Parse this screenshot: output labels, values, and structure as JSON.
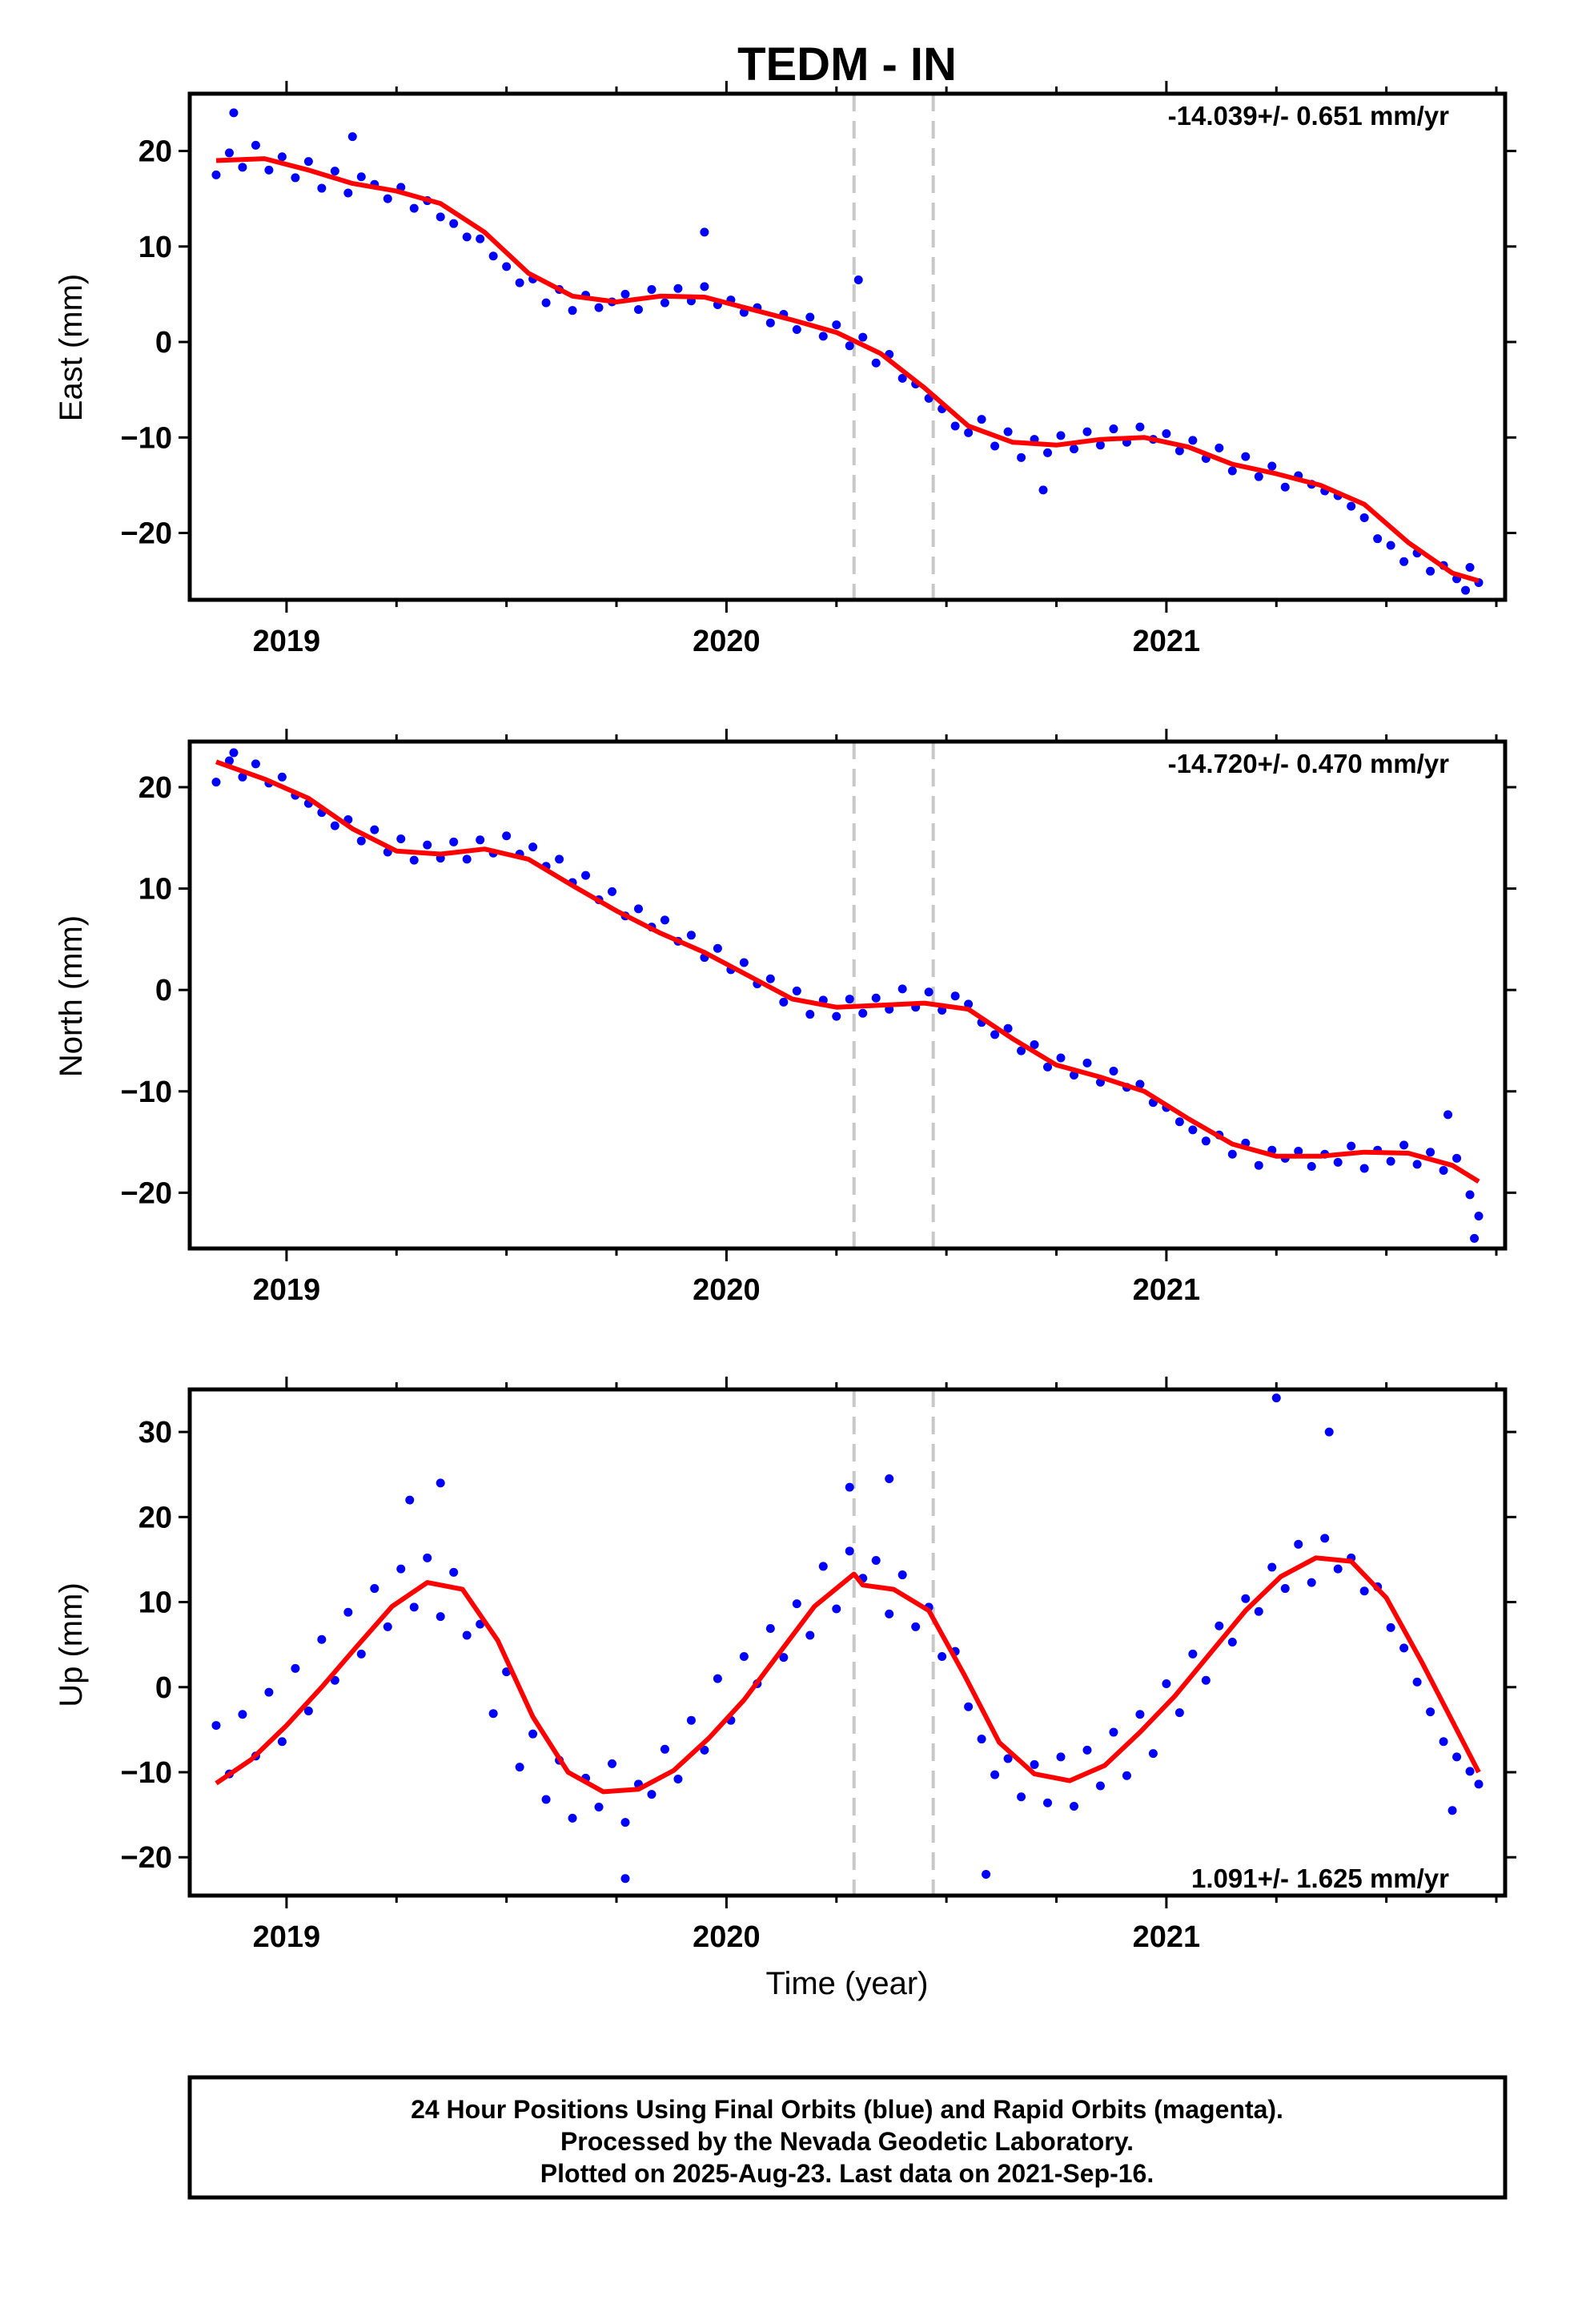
{
  "title": "TEDM - IN",
  "xlabel": "Time (year)",
  "footer": {
    "line1": "24 Hour Positions Using Final Orbits (blue) and Rapid Orbits (magenta).",
    "line2": "Processed by the Nevada Geodetic Laboratory.",
    "line3": "Plotted on 2025-Aug-23. Last data on 2021-Sep-16."
  },
  "colors": {
    "points": "#0000ff",
    "fit": "#ff0000",
    "event_lines": "#c8c8c8",
    "frame": "#000000"
  },
  "chart_data": [
    {
      "type": "scatter",
      "component": "East",
      "ylabel": "East (mm)",
      "rate_text": "-14.039+/- 0.651 mm/yr",
      "xlim": [
        2018.78,
        2021.77
      ],
      "ylim": [
        -27,
        26
      ],
      "xticks": [
        2019,
        2020,
        2021
      ],
      "xtick_labels": [
        "2019",
        "2020",
        "2021"
      ],
      "yticks": [
        -20,
        -10,
        0,
        10,
        20
      ],
      "ytick_labels": [
        "−20",
        "−10",
        "0",
        "10",
        "20"
      ],
      "event_lines": [
        2020.29,
        2020.47
      ],
      "fit_curve": {
        "x": [
          2018.84,
          2018.95,
          2019.05,
          2019.15,
          2019.25,
          2019.35,
          2019.45,
          2019.55,
          2019.65,
          2019.75,
          2019.85,
          2019.95,
          2020.05,
          2020.15,
          2020.25,
          2020.35,
          2020.45,
          2020.55,
          2020.65,
          2020.75,
          2020.85,
          2020.95,
          2021.05,
          2021.15,
          2021.25,
          2021.35,
          2021.45,
          2021.55,
          2021.65,
          2021.71
        ],
        "y": [
          19.0,
          19.2,
          18.0,
          16.6,
          15.8,
          14.5,
          11.5,
          7.2,
          4.8,
          4.2,
          4.8,
          4.7,
          3.5,
          2.3,
          1.0,
          -1.2,
          -4.8,
          -8.8,
          -10.5,
          -10.8,
          -10.2,
          -10.0,
          -11.0,
          -12.8,
          -13.8,
          -15.0,
          -17.0,
          -21.0,
          -24.2,
          -25.0
        ]
      },
      "points": {
        "x": [
          2018.84,
          2018.87,
          2018.9,
          2018.93,
          2018.96,
          2018.99,
          2019.02,
          2019.05,
          2019.08,
          2019.11,
          2019.14,
          2019.17,
          2019.2,
          2019.23,
          2019.26,
          2019.29,
          2019.32,
          2019.35,
          2019.38,
          2019.41,
          2019.44,
          2019.47,
          2019.5,
          2019.53,
          2019.56,
          2019.59,
          2019.62,
          2019.65,
          2019.68,
          2019.71,
          2019.74,
          2019.77,
          2019.8,
          2019.83,
          2019.86,
          2019.89,
          2019.92,
          2019.95,
          2019.98,
          2020.01,
          2020.04,
          2020.07,
          2020.1,
          2020.13,
          2020.16,
          2020.19,
          2020.22,
          2020.25,
          2020.28,
          2020.31,
          2020.34,
          2020.37,
          2020.4,
          2020.43,
          2020.46,
          2020.49,
          2020.52,
          2020.55,
          2020.58,
          2020.61,
          2020.64,
          2020.67,
          2020.7,
          2020.73,
          2020.76,
          2020.79,
          2020.82,
          2020.85,
          2020.88,
          2020.91,
          2020.94,
          2020.97,
          2021.0,
          2021.03,
          2021.06,
          2021.09,
          2021.12,
          2021.15,
          2021.18,
          2021.21,
          2021.24,
          2021.27,
          2021.3,
          2021.33,
          2021.36,
          2021.39,
          2021.42,
          2021.45,
          2021.48,
          2021.51,
          2021.54,
          2021.57,
          2021.6,
          2021.63,
          2021.66,
          2021.69,
          2021.71,
          2018.88,
          2019.15,
          2019.95,
          2020.3,
          2020.72,
          2021.68
        ],
        "y": [
          17.5,
          19.8,
          18.3,
          20.6,
          18.0,
          19.4,
          17.2,
          18.9,
          16.1,
          17.9,
          15.6,
          17.3,
          16.5,
          15.0,
          16.2,
          14.0,
          14.8,
          13.1,
          12.4,
          11.0,
          10.8,
          9.0,
          7.9,
          6.2,
          6.6,
          4.1,
          5.5,
          3.3,
          4.9,
          3.6,
          4.2,
          5.0,
          3.4,
          5.5,
          4.1,
          5.6,
          4.3,
          5.8,
          3.9,
          4.4,
          3.1,
          3.6,
          2.0,
          2.9,
          1.3,
          2.6,
          0.6,
          1.8,
          -0.4,
          0.5,
          -2.2,
          -1.3,
          -3.8,
          -4.4,
          -5.9,
          -7.0,
          -8.8,
          -9.5,
          -8.1,
          -10.9,
          -9.4,
          -12.1,
          -10.2,
          -11.6,
          -9.8,
          -11.2,
          -9.4,
          -10.8,
          -9.1,
          -10.5,
          -8.9,
          -10.2,
          -9.6,
          -11.4,
          -10.3,
          -12.2,
          -11.1,
          -13.5,
          -12.0,
          -14.1,
          -13.0,
          -15.2,
          -14.0,
          -14.9,
          -15.6,
          -16.1,
          -17.2,
          -18.4,
          -20.6,
          -21.3,
          -23.0,
          -22.1,
          -24.0,
          -23.4,
          -24.8,
          -23.6,
          -25.2,
          24.0,
          21.5,
          11.5,
          6.5,
          -15.5,
          -26.0
        ]
      }
    },
    {
      "type": "scatter",
      "component": "North",
      "ylabel": "North (mm)",
      "rate_text": "-14.720+/- 0.470 mm/yr",
      "xlim": [
        2018.78,
        2021.77
      ],
      "ylim": [
        -25.5,
        24.5
      ],
      "xticks": [
        2019,
        2020,
        2021
      ],
      "xtick_labels": [
        "2019",
        "2020",
        "2021"
      ],
      "yticks": [
        -20,
        -10,
        0,
        10,
        20
      ],
      "ytick_labels": [
        "−20",
        "−10",
        "0",
        "10",
        "20"
      ],
      "event_lines": [
        2020.29,
        2020.47
      ],
      "fit_curve": {
        "x": [
          2018.84,
          2018.95,
          2019.05,
          2019.15,
          2019.25,
          2019.35,
          2019.45,
          2019.55,
          2019.65,
          2019.75,
          2019.85,
          2019.95,
          2020.05,
          2020.15,
          2020.25,
          2020.35,
          2020.45,
          2020.55,
          2020.65,
          2020.75,
          2020.85,
          2020.95,
          2021.05,
          2021.15,
          2021.25,
          2021.35,
          2021.45,
          2021.55,
          2021.65,
          2021.71
        ],
        "y": [
          22.5,
          20.8,
          18.9,
          15.9,
          13.7,
          13.4,
          13.9,
          12.9,
          10.3,
          7.8,
          5.6,
          3.7,
          1.4,
          -0.9,
          -1.7,
          -1.5,
          -1.3,
          -1.9,
          -4.8,
          -7.4,
          -8.6,
          -10.0,
          -12.7,
          -15.2,
          -16.4,
          -16.4,
          -16.0,
          -16.1,
          -17.3,
          -18.9
        ]
      },
      "points": {
        "x": [
          2018.84,
          2018.87,
          2018.9,
          2018.93,
          2018.96,
          2018.99,
          2019.02,
          2019.05,
          2019.08,
          2019.11,
          2019.14,
          2019.17,
          2019.2,
          2019.23,
          2019.26,
          2019.29,
          2019.32,
          2019.35,
          2019.38,
          2019.41,
          2019.44,
          2019.47,
          2019.5,
          2019.53,
          2019.56,
          2019.59,
          2019.62,
          2019.65,
          2019.68,
          2019.71,
          2019.74,
          2019.77,
          2019.8,
          2019.83,
          2019.86,
          2019.89,
          2019.92,
          2019.95,
          2019.98,
          2020.01,
          2020.04,
          2020.07,
          2020.1,
          2020.13,
          2020.16,
          2020.19,
          2020.22,
          2020.25,
          2020.28,
          2020.31,
          2020.34,
          2020.37,
          2020.4,
          2020.43,
          2020.46,
          2020.49,
          2020.52,
          2020.55,
          2020.58,
          2020.61,
          2020.64,
          2020.67,
          2020.7,
          2020.73,
          2020.76,
          2020.79,
          2020.82,
          2020.85,
          2020.88,
          2020.91,
          2020.94,
          2020.97,
          2021.0,
          2021.03,
          2021.06,
          2021.09,
          2021.12,
          2021.15,
          2021.18,
          2021.21,
          2021.24,
          2021.27,
          2021.3,
          2021.33,
          2021.36,
          2021.39,
          2021.42,
          2021.45,
          2021.48,
          2021.51,
          2021.54,
          2021.57,
          2021.6,
          2021.63,
          2021.66,
          2021.69,
          2021.71,
          2018.88,
          2021.64,
          2021.7
        ],
        "y": [
          20.5,
          22.6,
          21.0,
          22.3,
          20.4,
          21.0,
          19.2,
          18.4,
          17.5,
          16.2,
          16.8,
          14.7,
          15.8,
          13.6,
          14.9,
          12.8,
          14.3,
          13.0,
          14.6,
          12.9,
          14.8,
          13.5,
          15.2,
          13.4,
          14.1,
          12.2,
          12.9,
          10.6,
          11.3,
          8.9,
          9.7,
          7.3,
          8.0,
          6.2,
          6.9,
          4.8,
          5.4,
          3.2,
          4.1,
          2.0,
          2.7,
          0.6,
          1.1,
          -1.2,
          -0.1,
          -2.4,
          -1.0,
          -2.6,
          -0.9,
          -2.3,
          -0.8,
          -1.9,
          0.1,
          -1.7,
          -0.2,
          -2.0,
          -0.6,
          -1.4,
          -3.2,
          -4.4,
          -3.8,
          -6.0,
          -5.4,
          -7.6,
          -6.7,
          -8.4,
          -7.2,
          -9.1,
          -8.0,
          -9.6,
          -9.3,
          -11.1,
          -11.6,
          -13.0,
          -13.8,
          -14.9,
          -14.3,
          -16.2,
          -15.1,
          -17.3,
          -15.8,
          -16.6,
          -15.9,
          -17.4,
          -16.2,
          -17.0,
          -15.4,
          -17.6,
          -15.8,
          -16.9,
          -15.3,
          -17.2,
          -16.0,
          -17.8,
          -16.6,
          -20.2,
          -22.3,
          23.4,
          -12.3,
          -24.5
        ]
      }
    },
    {
      "type": "scatter",
      "component": "Up",
      "ylabel": "Up (mm)",
      "rate_text": "1.091+/- 1.625 mm/yr",
      "xlim": [
        2018.78,
        2021.77
      ],
      "ylim": [
        -24.5,
        35
      ],
      "xticks": [
        2019,
        2020,
        2021
      ],
      "xtick_labels": [
        "2019",
        "2020",
        "2021"
      ],
      "yticks": [
        -20,
        -10,
        0,
        10,
        20,
        30
      ],
      "ytick_labels": [
        "−20",
        "−10",
        "0",
        "10",
        "20",
        "30"
      ],
      "event_lines": [
        2020.29,
        2020.47
      ],
      "fit_curve": {
        "x": [
          2018.84,
          2018.92,
          2019.0,
          2019.08,
          2019.16,
          2019.24,
          2019.32,
          2019.4,
          2019.48,
          2019.56,
          2019.64,
          2019.72,
          2019.8,
          2019.88,
          2019.96,
          2020.04,
          2020.12,
          2020.2,
          2020.29,
          2020.31,
          2020.38,
          2020.46,
          2020.54,
          2020.62,
          2020.7,
          2020.78,
          2020.86,
          2020.94,
          2021.02,
          2021.1,
          2021.18,
          2021.26,
          2021.34,
          2021.42,
          2021.5,
          2021.58,
          2021.66,
          2021.71
        ],
        "y": [
          -11.3,
          -8.5,
          -4.5,
          0.0,
          4.8,
          9.5,
          12.3,
          11.5,
          5.5,
          -3.5,
          -10.0,
          -12.3,
          -12.0,
          -9.8,
          -6.0,
          -1.5,
          4.0,
          9.5,
          13.3,
          12.0,
          11.5,
          9.0,
          1.5,
          -6.5,
          -10.2,
          -11.0,
          -9.2,
          -5.3,
          -1.0,
          4.0,
          9.0,
          13.0,
          15.2,
          14.8,
          10.5,
          3.0,
          -5.0,
          -10.0
        ]
      },
      "points": {
        "x": [
          2018.84,
          2018.87,
          2018.9,
          2018.93,
          2018.96,
          2018.99,
          2019.02,
          2019.05,
          2019.08,
          2019.11,
          2019.14,
          2019.17,
          2019.2,
          2019.23,
          2019.26,
          2019.29,
          2019.32,
          2019.35,
          2019.38,
          2019.41,
          2019.44,
          2019.47,
          2019.5,
          2019.53,
          2019.56,
          2019.59,
          2019.62,
          2019.65,
          2019.68,
          2019.71,
          2019.74,
          2019.77,
          2019.8,
          2019.83,
          2019.86,
          2019.89,
          2019.92,
          2019.95,
          2019.98,
          2020.01,
          2020.04,
          2020.07,
          2020.1,
          2020.13,
          2020.16,
          2020.19,
          2020.22,
          2020.25,
          2020.28,
          2020.31,
          2020.34,
          2020.37,
          2020.4,
          2020.43,
          2020.46,
          2020.49,
          2020.52,
          2020.55,
          2020.58,
          2020.61,
          2020.64,
          2020.67,
          2020.7,
          2020.73,
          2020.76,
          2020.79,
          2020.82,
          2020.85,
          2020.88,
          2020.91,
          2020.94,
          2020.97,
          2021.0,
          2021.03,
          2021.06,
          2021.09,
          2021.12,
          2021.15,
          2021.18,
          2021.21,
          2021.24,
          2021.27,
          2021.3,
          2021.33,
          2021.36,
          2021.39,
          2021.42,
          2021.45,
          2021.48,
          2021.51,
          2021.54,
          2021.57,
          2021.6,
          2021.63,
          2021.66,
          2021.69,
          2021.71,
          2019.28,
          2019.35,
          2019.77,
          2020.28,
          2020.37,
          2020.59,
          2021.25,
          2021.37,
          2021.65
        ],
        "y": [
          -4.5,
          -10.2,
          -3.2,
          -8.1,
          -0.6,
          -6.4,
          2.2,
          -2.8,
          5.6,
          0.8,
          8.8,
          3.9,
          11.6,
          7.1,
          13.9,
          9.4,
          15.2,
          8.3,
          13.5,
          6.1,
          7.4,
          -3.1,
          1.8,
          -9.4,
          -5.5,
          -13.2,
          -8.6,
          -15.4,
          -10.7,
          -14.1,
          -9.0,
          -15.9,
          -11.4,
          -12.6,
          -7.3,
          -10.8,
          -3.9,
          -7.4,
          1.0,
          -3.9,
          3.6,
          0.4,
          6.9,
          3.5,
          9.8,
          6.1,
          14.2,
          9.2,
          16.0,
          12.8,
          14.9,
          8.6,
          13.2,
          7.1,
          9.4,
          3.6,
          4.2,
          -2.3,
          -6.1,
          -10.3,
          -8.4,
          -12.9,
          -9.1,
          -13.6,
          -8.2,
          -14.0,
          -7.4,
          -11.6,
          -5.3,
          -10.4,
          -3.2,
          -7.8,
          0.4,
          -3.0,
          3.9,
          0.8,
          7.2,
          5.3,
          10.4,
          8.9,
          14.1,
          11.6,
          16.8,
          12.3,
          17.5,
          13.9,
          15.2,
          11.3,
          11.8,
          7.0,
          4.6,
          0.6,
          -2.9,
          -6.4,
          -8.2,
          -9.9,
          -11.4,
          22.0,
          24.0,
          -22.5,
          23.5,
          24.5,
          -22.0,
          34.0,
          30.0,
          -14.5
        ]
      }
    }
  ]
}
